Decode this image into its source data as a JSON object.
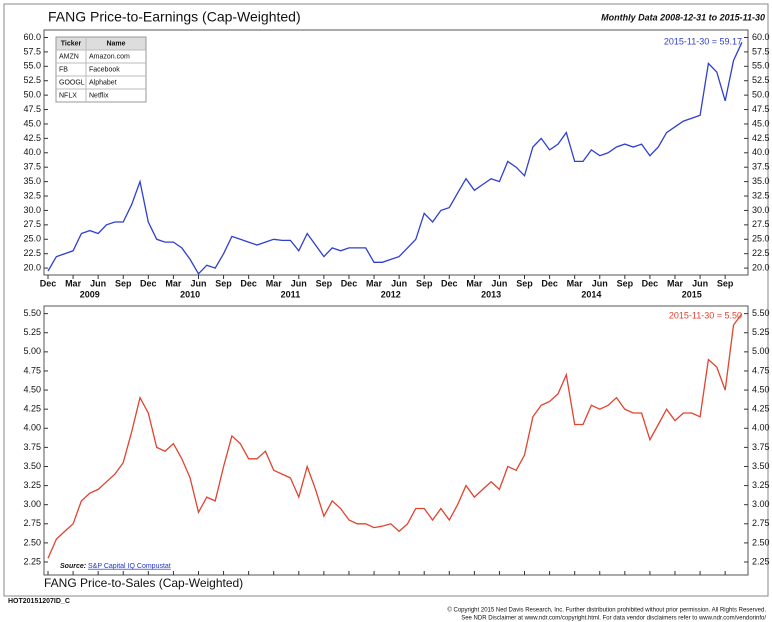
{
  "chart_data": [
    {
      "type": "line",
      "title": "FANG Price-to-Earnings (Cap-Weighted)",
      "subtitle": "Monthly Data 2008-12-31 to 2015-11-30",
      "annotation": "2015-11-30 = 59.17",
      "color": "#2f3fd0",
      "x": [
        "2008-12",
        "2009-01",
        "2009-02",
        "2009-03",
        "2009-04",
        "2009-05",
        "2009-06",
        "2009-07",
        "2009-08",
        "2009-09",
        "2009-10",
        "2009-11",
        "2009-12",
        "2010-01",
        "2010-02",
        "2010-03",
        "2010-04",
        "2010-05",
        "2010-06",
        "2010-07",
        "2010-08",
        "2010-09",
        "2010-10",
        "2010-11",
        "2010-12",
        "2011-01",
        "2011-02",
        "2011-03",
        "2011-04",
        "2011-05",
        "2011-06",
        "2011-07",
        "2011-08",
        "2011-09",
        "2011-10",
        "2011-11",
        "2011-12",
        "2012-01",
        "2012-02",
        "2012-03",
        "2012-04",
        "2012-05",
        "2012-06",
        "2012-07",
        "2012-08",
        "2012-09",
        "2012-10",
        "2012-11",
        "2012-12",
        "2013-01",
        "2013-02",
        "2013-03",
        "2013-04",
        "2013-05",
        "2013-06",
        "2013-07",
        "2013-08",
        "2013-09",
        "2013-10",
        "2013-11",
        "2013-12",
        "2014-01",
        "2014-02",
        "2014-03",
        "2014-04",
        "2014-05",
        "2014-06",
        "2014-07",
        "2014-08",
        "2014-09",
        "2014-10",
        "2014-11",
        "2014-12",
        "2015-01",
        "2015-02",
        "2015-03",
        "2015-04",
        "2015-05",
        "2015-06",
        "2015-07",
        "2015-08",
        "2015-09",
        "2015-10",
        "2015-11"
      ],
      "values": [
        19.5,
        22,
        22.5,
        23,
        26,
        26.5,
        26,
        27.5,
        28,
        28,
        31,
        35,
        28,
        25,
        24.5,
        24.5,
        23.5,
        21.5,
        19,
        20.5,
        20,
        22.5,
        25.5,
        25,
        24.5,
        24,
        24.5,
        25,
        24.8,
        24.8,
        23,
        26,
        24,
        22,
        23.5,
        23,
        23.5,
        23.5,
        23.5,
        21,
        21,
        21.5,
        22,
        23.5,
        25,
        29.5,
        28,
        30,
        30.5,
        33,
        35.5,
        33.5,
        34.5,
        35.5,
        35,
        38.5,
        37.5,
        36,
        41,
        42.5,
        40.5,
        41.5,
        43.5,
        38.5,
        38.5,
        40.5,
        39.5,
        40,
        41,
        41.5,
        41,
        41.5,
        39.5,
        41,
        43.5,
        44.5,
        45.5,
        46,
        46.5,
        55.5,
        54,
        49,
        56,
        59.17
      ],
      "ylim": [
        18.8,
        61.3
      ],
      "yticks": [
        {
          "value": 20,
          "label": "20.0"
        },
        {
          "value": 22.5,
          "label": "22.5"
        },
        {
          "value": 25,
          "label": "25.0"
        },
        {
          "value": 27.5,
          "label": "27.5"
        },
        {
          "value": 30,
          "label": "30.0"
        },
        {
          "value": 32.5,
          "label": "32.5"
        },
        {
          "value": 35,
          "label": "35.0"
        },
        {
          "value": 37.5,
          "label": "37.5"
        },
        {
          "value": 40,
          "label": "40.0"
        },
        {
          "value": 42.5,
          "label": "42.5"
        },
        {
          "value": 45,
          "label": "45.0"
        },
        {
          "value": 47.5,
          "label": "47.5"
        },
        {
          "value": 50,
          "label": "50.0"
        },
        {
          "value": 52.5,
          "label": "52.5"
        },
        {
          "value": 55,
          "label": "55.0"
        },
        {
          "value": 57.5,
          "label": "57.5"
        },
        {
          "value": 60,
          "label": "60.0"
        }
      ],
      "xticks": [
        {
          "value": "2008-12",
          "label": "Dec"
        },
        {
          "value": "2009-03",
          "label": "Mar"
        },
        {
          "value": "2009-06",
          "label": "Jun"
        },
        {
          "value": "2009-09",
          "label": "Sep"
        },
        {
          "value": "2009-12",
          "label": "Dec"
        },
        {
          "value": "2010-03",
          "label": "Mar"
        },
        {
          "value": "2010-06",
          "label": "Jun"
        },
        {
          "value": "2010-09",
          "label": "Sep"
        },
        {
          "value": "2010-12",
          "label": "Dec"
        },
        {
          "value": "2011-03",
          "label": "Mar"
        },
        {
          "value": "2011-06",
          "label": "Jun"
        },
        {
          "value": "2011-09",
          "label": "Sep"
        },
        {
          "value": "2011-12",
          "label": "Dec"
        },
        {
          "value": "2012-03",
          "label": "Mar"
        },
        {
          "value": "2012-06",
          "label": "Jun"
        },
        {
          "value": "2012-09",
          "label": "Sep"
        },
        {
          "value": "2012-12",
          "label": "Dec"
        },
        {
          "value": "2013-03",
          "label": "Mar"
        },
        {
          "value": "2013-06",
          "label": "Jun"
        },
        {
          "value": "2013-09",
          "label": "Sep"
        },
        {
          "value": "2013-12",
          "label": "Dec"
        },
        {
          "value": "2014-03",
          "label": "Mar"
        },
        {
          "value": "2014-06",
          "label": "Jun"
        },
        {
          "value": "2014-09",
          "label": "Sep"
        },
        {
          "value": "2014-12",
          "label": "Dec"
        },
        {
          "value": "2015-03",
          "label": "Mar"
        },
        {
          "value": "2015-06",
          "label": "Jun"
        },
        {
          "value": "2015-09",
          "label": "Sep"
        }
      ],
      "year_labels": [
        {
          "value": "2009-05",
          "label": "2009"
        },
        {
          "value": "2010-05",
          "label": "2010"
        },
        {
          "value": "2011-05",
          "label": "2011"
        },
        {
          "value": "2012-05",
          "label": "2012"
        },
        {
          "value": "2013-05",
          "label": "2013"
        },
        {
          "value": "2014-05",
          "label": "2014"
        },
        {
          "value": "2015-05",
          "label": "2015"
        }
      ],
      "legend_table": {
        "columns": [
          "Ticker",
          "Name"
        ],
        "rows": [
          [
            "AMZN",
            "Amazon.com"
          ],
          [
            "FB",
            "Facebook"
          ],
          [
            "GOOGL",
            "Alphabet"
          ],
          [
            "NFLX",
            "Netflix"
          ]
        ]
      }
    },
    {
      "type": "line",
      "title": "FANG Price-to-Sales (Cap-Weighted)",
      "annotation": "2015-11-30 = 5.50",
      "color": "#e0432f",
      "source_label": "Source:",
      "source": "S&P Capital IQ Compustat",
      "values": [
        2.3,
        2.55,
        2.65,
        2.75,
        3.05,
        3.15,
        3.2,
        3.3,
        3.4,
        3.55,
        3.95,
        4.4,
        4.2,
        3.75,
        3.7,
        3.8,
        3.6,
        3.35,
        2.9,
        3.1,
        3.05,
        3.5,
        3.9,
        3.8,
        3.6,
        3.6,
        3.7,
        3.45,
        3.4,
        3.35,
        3.1,
        3.5,
        3.2,
        2.85,
        3.05,
        2.95,
        2.8,
        2.75,
        2.75,
        2.7,
        2.72,
        2.75,
        2.65,
        2.75,
        2.95,
        2.95,
        2.8,
        2.95,
        2.8,
        3.0,
        3.25,
        3.1,
        3.2,
        3.3,
        3.2,
        3.5,
        3.45,
        3.65,
        4.15,
        4.3,
        4.35,
        4.45,
        4.7,
        4.05,
        4.05,
        4.3,
        4.25,
        4.3,
        4.4,
        4.25,
        4.2,
        4.2,
        3.85,
        4.05,
        4.25,
        4.1,
        4.2,
        4.2,
        4.15,
        4.9,
        4.8,
        4.5,
        5.35,
        5.5
      ],
      "ylim": [
        2.08,
        5.6
      ],
      "yticks": [
        {
          "value": 2.25,
          "label": "2.25"
        },
        {
          "value": 2.5,
          "label": "2.50"
        },
        {
          "value": 2.75,
          "label": "2.75"
        },
        {
          "value": 3,
          "label": "3.00"
        },
        {
          "value": 3.25,
          "label": "3.25"
        },
        {
          "value": 3.5,
          "label": "3.50"
        },
        {
          "value": 3.75,
          "label": "3.75"
        },
        {
          "value": 4,
          "label": "4.00"
        },
        {
          "value": 4.25,
          "label": "4.25"
        },
        {
          "value": 4.5,
          "label": "4.50"
        },
        {
          "value": 4.75,
          "label": "4.75"
        },
        {
          "value": 5,
          "label": "5.00"
        },
        {
          "value": 5.25,
          "label": "5.25"
        },
        {
          "value": 5.5,
          "label": "5.50"
        }
      ]
    }
  ],
  "footer": {
    "code": "HOT20151207ID_C",
    "copyright": [
      "© Copyright 2015 Ned Davis Research, Inc. Further distribution prohibited without prior permission. All Rights Reserved.",
      "See NDR Disclaimer at www.ndr.com/copyright.html. For data vendor disclaimers refer to www.ndr.com/vendorinfo/"
    ]
  }
}
